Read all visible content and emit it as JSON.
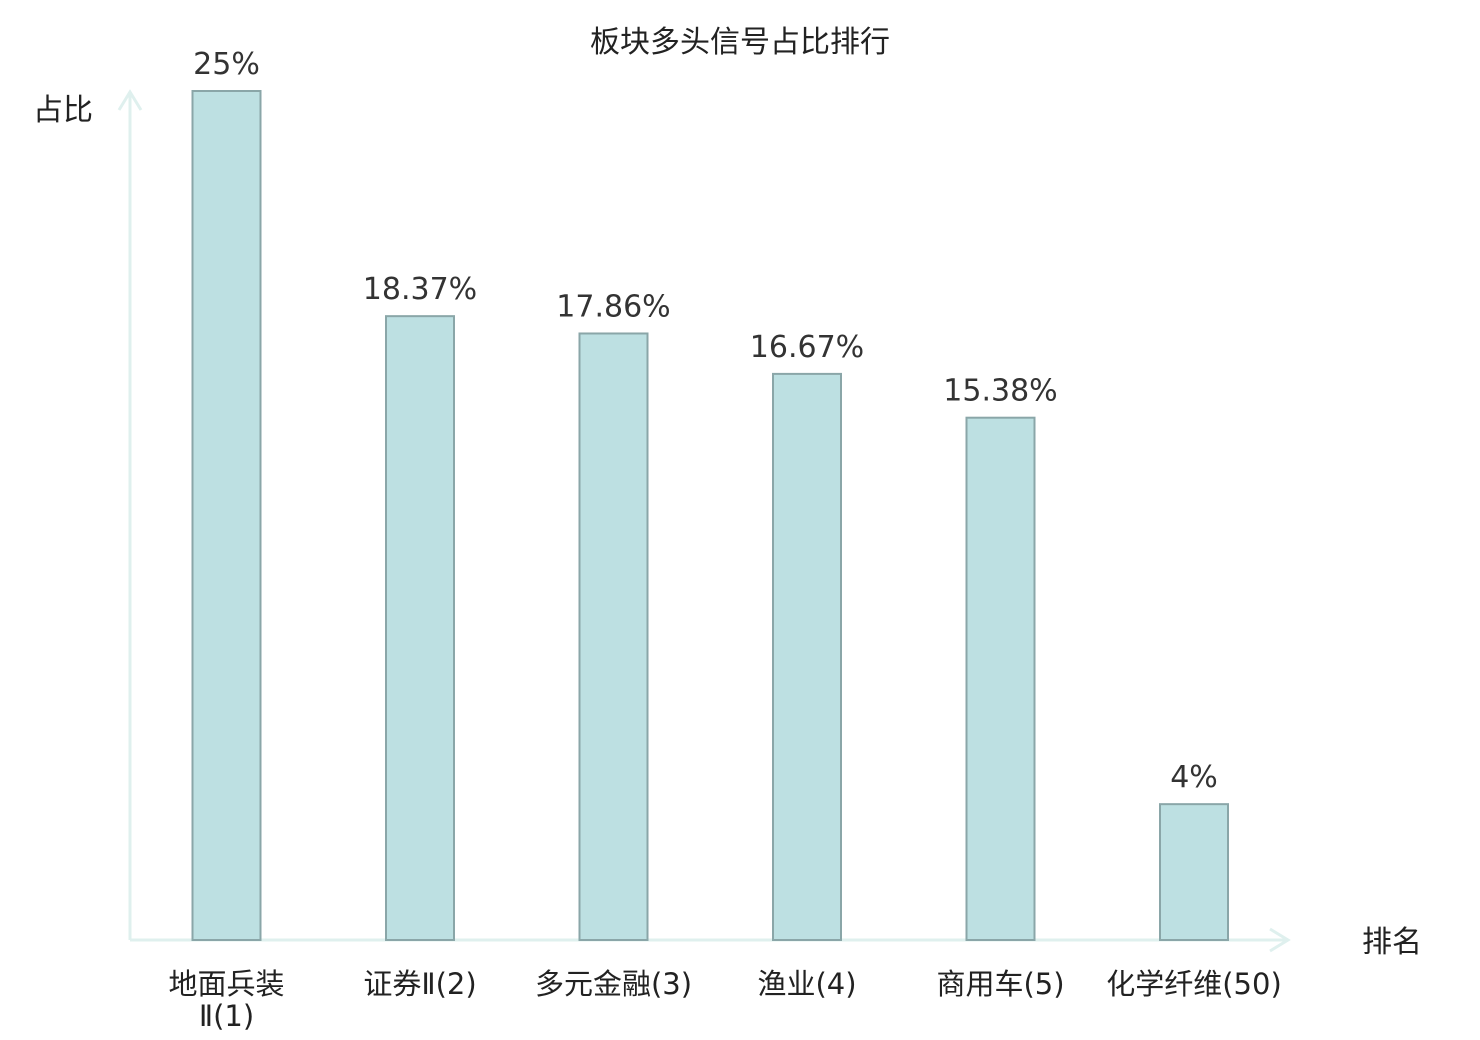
{
  "chart_data": {
    "type": "bar",
    "title": "板块多头信号占比排行",
    "ylabel": "占比",
    "xlabel": "排名",
    "categories": [
      "地面兵装Ⅱ(1)",
      "证券Ⅱ(2)",
      "多元金融(3)",
      "渔业(4)",
      "商用车(5)",
      "化学纤维(50)"
    ],
    "category_lines": [
      [
        "地面兵装",
        "Ⅱ(1)"
      ],
      [
        "证券Ⅱ(2)"
      ],
      [
        "多元金融(3)"
      ],
      [
        "渔业(4)"
      ],
      [
        "商用车(5)"
      ],
      [
        "化学纤维(50)"
      ]
    ],
    "values": [
      25,
      18.37,
      17.86,
      16.67,
      15.38,
      4
    ],
    "value_labels": [
      "25%",
      "18.37%",
      "17.86%",
      "16.67%",
      "15.38%",
      "4%"
    ],
    "ylim": [
      0,
      25
    ],
    "grid": false,
    "colors": {
      "bar_fill": "#bde0e2",
      "bar_stroke": "#8aa6a8",
      "axis": "#dff0ee",
      "highlight_label": "#e00000",
      "text": "#222222"
    },
    "highlight_index": 5
  }
}
